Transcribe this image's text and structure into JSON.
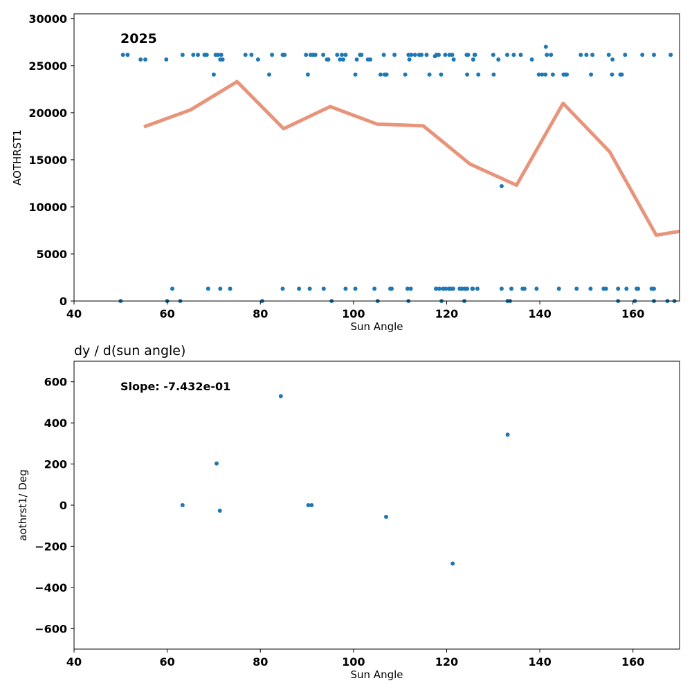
{
  "chart_data": [
    {
      "type": "scatter",
      "annotation": "2025",
      "title": "",
      "xlabel": "Sun Angle",
      "ylabel": "AOTHRST1",
      "xlim": [
        40,
        170
      ],
      "ylim": [
        0,
        30500
      ],
      "xticks": [
        40,
        60,
        80,
        100,
        120,
        140,
        160
      ],
      "yticks": [
        0,
        5000,
        10000,
        15000,
        20000,
        25000,
        30000
      ],
      "grid": false,
      "colors": {
        "points": "#1f77b4",
        "line": "#e8947a"
      },
      "series": [
        {
          "kind": "scatter",
          "points": [
            [
              50.5,
              26150
            ],
            [
              51.5,
              26150
            ],
            [
              54.3,
              25650
            ],
            [
              55.3,
              25650
            ],
            [
              59.8,
              25650
            ],
            [
              63.3,
              26150
            ],
            [
              65.6,
              26150
            ],
            [
              66.6,
              26150
            ],
            [
              68.0,
              26150
            ],
            [
              68.5,
              26150
            ],
            [
              70.0,
              24050
            ],
            [
              70.4,
              26150
            ],
            [
              70.9,
              26150
            ],
            [
              71.4,
              25650
            ],
            [
              71.6,
              26150
            ],
            [
              71.9,
              25650
            ],
            [
              76.8,
              26150
            ],
            [
              78.1,
              26150
            ],
            [
              79.5,
              25650
            ],
            [
              81.9,
              24050
            ],
            [
              82.5,
              26150
            ],
            [
              84.8,
              26150
            ],
            [
              85.2,
              26150
            ],
            [
              89.8,
              26150
            ],
            [
              90.2,
              24050
            ],
            [
              90.8,
              26150
            ],
            [
              91.3,
              26150
            ],
            [
              91.8,
              26150
            ],
            [
              93.5,
              26150
            ],
            [
              94.3,
              25650
            ],
            [
              94.6,
              25650
            ],
            [
              96.5,
              26150
            ],
            [
              97.1,
              25650
            ],
            [
              97.5,
              26150
            ],
            [
              97.8,
              25650
            ],
            [
              98.3,
              26150
            ],
            [
              100.4,
              24050
            ],
            [
              100.7,
              25650
            ],
            [
              101.4,
              26150
            ],
            [
              101.7,
              26150
            ],
            [
              103.1,
              25650
            ],
            [
              103.6,
              25650
            ],
            [
              105.8,
              24050
            ],
            [
              106.5,
              26150
            ],
            [
              106.7,
              24050
            ],
            [
              107.1,
              24050
            ],
            [
              108.8,
              26150
            ],
            [
              111.1,
              24050
            ],
            [
              111.8,
              26150
            ],
            [
              112.0,
              25650
            ],
            [
              112.4,
              26150
            ],
            [
              113.2,
              26150
            ],
            [
              114.1,
              26150
            ],
            [
              114.6,
              26150
            ],
            [
              115.7,
              26150
            ],
            [
              116.3,
              24050
            ],
            [
              117.5,
              26000
            ],
            [
              117.8,
              26150
            ],
            [
              118.3,
              26150
            ],
            [
              118.8,
              24050
            ],
            [
              119.7,
              26150
            ],
            [
              120.6,
              26150
            ],
            [
              121.2,
              26150
            ],
            [
              121.5,
              25650
            ],
            [
              124.3,
              26150
            ],
            [
              124.6,
              26150
            ],
            [
              124.4,
              24050
            ],
            [
              125.7,
              25650
            ],
            [
              126.0,
              26150
            ],
            [
              126.1,
              26150
            ],
            [
              126.8,
              24050
            ],
            [
              130.0,
              26150
            ],
            [
              130.1,
              24050
            ],
            [
              131.1,
              25650
            ],
            [
              133.0,
              26150
            ],
            [
              134.4,
              26150
            ],
            [
              135.9,
              26150
            ],
            [
              138.3,
              25650
            ],
            [
              139.8,
              24050
            ],
            [
              140.5,
              24050
            ],
            [
              141.2,
              24050
            ],
            [
              141.3,
              27000
            ],
            [
              141.5,
              26150
            ],
            [
              142.4,
              26150
            ],
            [
              142.8,
              24050
            ],
            [
              145.1,
              24050
            ],
            [
              145.5,
              24050
            ],
            [
              145.8,
              24050
            ],
            [
              148.8,
              26150
            ],
            [
              150.0,
              26150
            ],
            [
              151.0,
              24050
            ],
            [
              151.3,
              26150
            ],
            [
              154.8,
              26150
            ],
            [
              155.5,
              24050
            ],
            [
              155.6,
              25650
            ],
            [
              157.3,
              24050
            ],
            [
              157.6,
              24050
            ],
            [
              158.3,
              26150
            ],
            [
              162.0,
              26150
            ],
            [
              164.5,
              26150
            ],
            [
              168.1,
              26150
            ],
            [
              131.8,
              12200
            ],
            [
              50.0,
              0
            ],
            [
              61.1,
              1300
            ],
            [
              60.0,
              0
            ],
            [
              62.8,
              0
            ],
            [
              68.8,
              1300
            ],
            [
              71.4,
              1300
            ],
            [
              73.5,
              1300
            ],
            [
              80.4,
              0
            ],
            [
              84.8,
              1300
            ],
            [
              88.3,
              1300
            ],
            [
              90.6,
              1300
            ],
            [
              93.6,
              1300
            ],
            [
              95.3,
              0
            ],
            [
              98.3,
              1300
            ],
            [
              100.4,
              1300
            ],
            [
              104.5,
              1300
            ],
            [
              105.2,
              0
            ],
            [
              107.9,
              1300
            ],
            [
              108.2,
              1300
            ],
            [
              111.6,
              1300
            ],
            [
              111.8,
              0
            ],
            [
              112.3,
              1300
            ],
            [
              117.7,
              1300
            ],
            [
              118.4,
              1300
            ],
            [
              118.9,
              0
            ],
            [
              119.2,
              1300
            ],
            [
              119.8,
              1300
            ],
            [
              120.5,
              1300
            ],
            [
              120.9,
              1300
            ],
            [
              121.4,
              1300
            ],
            [
              122.8,
              1300
            ],
            [
              123.3,
              1300
            ],
            [
              123.9,
              1300
            ],
            [
              124.4,
              1300
            ],
            [
              123.8,
              0
            ],
            [
              125.5,
              1300
            ],
            [
              125.6,
              1300
            ],
            [
              126.6,
              1300
            ],
            [
              131.8,
              1300
            ],
            [
              133.1,
              0
            ],
            [
              133.6,
              0
            ],
            [
              133.9,
              1300
            ],
            [
              136.3,
              1300
            ],
            [
              136.7,
              1300
            ],
            [
              139.3,
              1300
            ],
            [
              144.1,
              1300
            ],
            [
              147.9,
              1300
            ],
            [
              150.9,
              1300
            ],
            [
              153.7,
              1300
            ],
            [
              154.2,
              1300
            ],
            [
              156.8,
              1300
            ],
            [
              156.8,
              0
            ],
            [
              158.6,
              1300
            ],
            [
              160.4,
              0
            ],
            [
              160.8,
              1300
            ],
            [
              161.1,
              1300
            ],
            [
              164.0,
              1300
            ],
            [
              164.5,
              1300
            ],
            [
              164.5,
              0
            ],
            [
              167.4,
              0
            ],
            [
              168.9,
              0
            ]
          ]
        },
        {
          "kind": "line",
          "x": [
            55,
            65,
            75,
            85,
            95,
            105,
            115,
            125,
            135,
            145,
            155,
            165,
            170
          ],
          "y": [
            18500,
            20300,
            23300,
            18300,
            20650,
            18800,
            18600,
            14550,
            12300,
            21000,
            15850,
            7000,
            7400
          ]
        }
      ]
    },
    {
      "type": "scatter",
      "annotation": "Slope: -7.432e-01",
      "title": "dy / d(sun angle)",
      "xlabel": "Sun Angle",
      "ylabel": "aothrst1/ Deg",
      "xlim": [
        40,
        170
      ],
      "ylim": [
        -700,
        700
      ],
      "xticks": [
        40,
        60,
        80,
        100,
        120,
        140,
        160
      ],
      "yticks": [
        -600,
        -400,
        -200,
        0,
        200,
        400,
        600
      ],
      "grid": false,
      "colors": {
        "points": "#1f77b4"
      },
      "series": [
        {
          "kind": "scatter",
          "points": [
            [
              63.3,
              0
            ],
            [
              70.6,
              203
            ],
            [
              71.3,
              -27
            ],
            [
              84.4,
              530
            ],
            [
              90.3,
              0
            ],
            [
              91.0,
              0
            ],
            [
              107.0,
              -57
            ],
            [
              121.3,
              -284
            ],
            [
              133.1,
              343
            ]
          ]
        }
      ]
    }
  ]
}
